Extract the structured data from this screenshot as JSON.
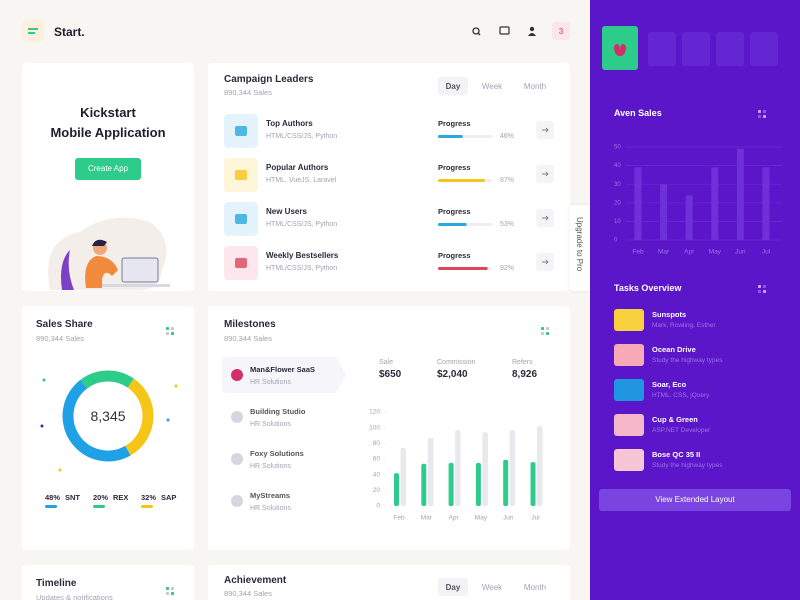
{
  "header": {
    "logo": "Start.",
    "badge": 3
  },
  "kickstart": {
    "title_line1": "Kickstart",
    "title_line2": "Mobile Application",
    "button": "Create App"
  },
  "campaign": {
    "title": "Campaign Leaders",
    "subtitle": "890,344 Sales",
    "tabs": [
      "Day",
      "Week",
      "Month"
    ],
    "progress_label": "Progress",
    "rows": [
      {
        "name": "Top Authors",
        "tech": "HTML/CSS/JS, Python",
        "progress": 46,
        "progress_label": "46%",
        "color": "#25a9e0"
      },
      {
        "name": "Popular Authors",
        "tech": "HTML, VueJS, Laravel",
        "progress": 87,
        "progress_label": "87%",
        "color": "#f5c518"
      },
      {
        "name": "New Users",
        "tech": "HTML/CSS/JS, Python",
        "progress": 53,
        "progress_label": "53%",
        "color": "#25a9e0"
      },
      {
        "name": "Weekly Bestsellers",
        "tech": "HTML/CSS/JS, Python",
        "progress": 92,
        "progress_label": "92%",
        "color": "#d9485f"
      }
    ]
  },
  "sales_share": {
    "title": "Sales Share",
    "subtitle": "890,344 Sales",
    "total_label": "8,345",
    "segments": [
      {
        "name": "SNT",
        "value": 48,
        "label": "48%",
        "color": "#1ea1e6"
      },
      {
        "name": "REX",
        "value": 20,
        "label": "20%",
        "color": "#2ecc8a"
      },
      {
        "name": "SAP",
        "value": 32,
        "label": "32%",
        "color": "#f5c518"
      }
    ]
  },
  "milestones": {
    "title": "Milestones",
    "subtitle": "890,344 Sales",
    "items": [
      {
        "name": "Man&Flower SaaS",
        "sub": "HR Solutions"
      },
      {
        "name": "Building Studio",
        "sub": "HR Solutions"
      },
      {
        "name": "Foxy Solutions",
        "sub": "HR Solutions"
      },
      {
        "name": "MyStreams",
        "sub": "HR Solutions"
      }
    ],
    "stats": [
      {
        "label": "Sale",
        "value": "$650"
      },
      {
        "label": "Commission",
        "value": "$2,040"
      },
      {
        "label": "Refers",
        "value": "8,926"
      }
    ],
    "chart": {
      "type": "bar",
      "categories": [
        "Feb",
        "Mar",
        "Apr",
        "May",
        "Jun",
        "Jul"
      ],
      "ylim": [
        0,
        120
      ],
      "yticks": [
        0,
        20,
        40,
        60,
        80,
        100,
        120
      ],
      "series": [
        {
          "color": "#2ecc8a",
          "values": [
            42,
            54,
            55,
            55,
            59,
            56
          ]
        },
        {
          "color": "#e8e8ef",
          "values": [
            74,
            87,
            97,
            94,
            97,
            102
          ]
        }
      ]
    }
  },
  "timeline": {
    "title": "Timeline",
    "subtitle": "Updates & notifications"
  },
  "achievement": {
    "title": "Achievement",
    "subtitle": "890,344 Sales",
    "tabs": [
      "Day",
      "Week",
      "Month"
    ]
  },
  "upgrade": "Upgrade to Pro",
  "sidebar": {
    "aven_sales": {
      "title": "Aven Sales",
      "chart": {
        "type": "bar",
        "categories": [
          "Feb",
          "Mar",
          "Apr",
          "May",
          "Jun",
          "Jul"
        ],
        "ylim": [
          0,
          50
        ],
        "yticks": [
          0,
          10,
          20,
          30,
          40,
          50
        ],
        "color": "#6f30da",
        "values": [
          39,
          30,
          24,
          39,
          49,
          39
        ]
      }
    },
    "tasks": {
      "title": "Tasks Overview",
      "items": [
        {
          "name": "Sunspots",
          "sub": "Mark, Rowling, Esther",
          "color": "#f7d23e"
        },
        {
          "name": "Ocean Drive",
          "sub": "Study the highway types",
          "color": "#f7a9b8"
        },
        {
          "name": "Soar, Eco",
          "sub": "HTML, CSS, jQuery",
          "color": "#2196e0"
        },
        {
          "name": "Cup & Green",
          "sub": "ASP.NET Developer",
          "color": "#f4b6c8"
        },
        {
          "name": "Bose QC 35 II",
          "sub": "Study the highway types",
          "color": "#f6c6d6"
        }
      ]
    },
    "button": "View Extended Layout"
  }
}
